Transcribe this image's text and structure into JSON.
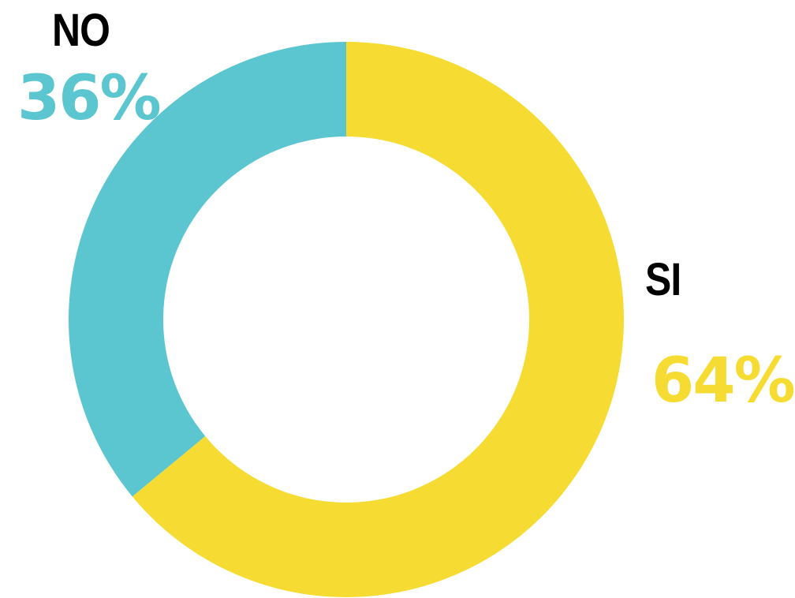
{
  "chart_data": {
    "type": "pie",
    "donut": true,
    "title": "",
    "legend": "none",
    "slices": [
      {
        "label": "SI",
        "value": 64,
        "value_label": "64%",
        "color": "#f6dc32"
      },
      {
        "label": "NO",
        "value": 36,
        "value_label": "36%",
        "color": "#5bc6d0"
      }
    ]
  }
}
